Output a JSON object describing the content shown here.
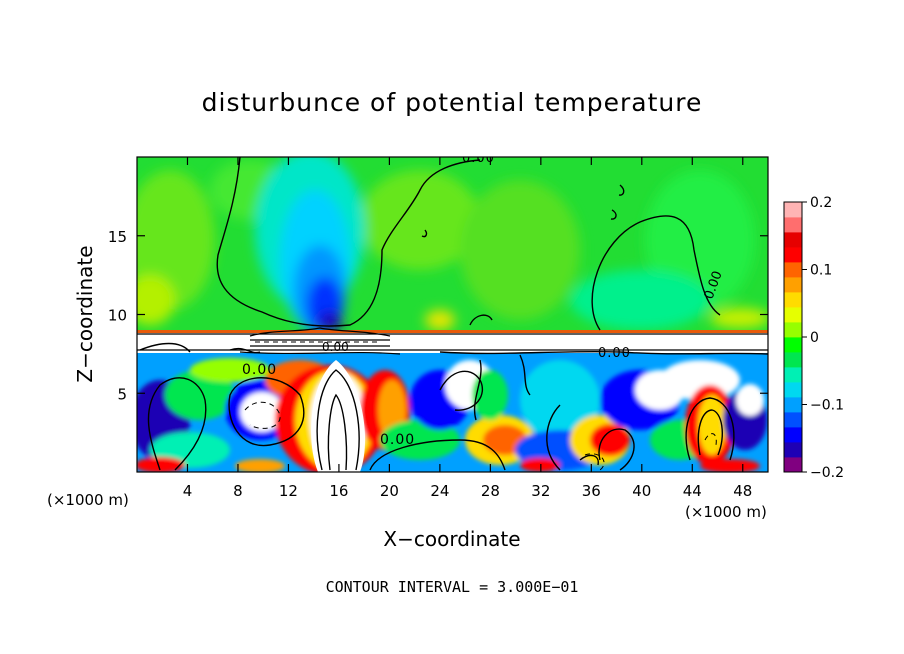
{
  "chart_data": {
    "type": "heatmap",
    "title": "disturbunce of potential temperature",
    "xlabel": "X−coordinate",
    "ylabel": "Z−coordinate",
    "x_unit_left": "(×1000 m)",
    "x_unit_right": "(×1000 m)",
    "x_ticks": [
      4,
      8,
      12,
      16,
      20,
      24,
      28,
      32,
      36,
      40,
      44,
      48
    ],
    "y_ticks": [
      5,
      10,
      15
    ],
    "xlim": [
      0,
      50
    ],
    "ylim": [
      0,
      20
    ],
    "colorbar": {
      "ticks": [
        "0.2",
        "0.1",
        "0",
        "−0.1",
        "−0.2"
      ],
      "tick_values": [
        0.2,
        0.1,
        0,
        -0.1,
        -0.2
      ],
      "range": [
        -0.2,
        0.2
      ],
      "colors": [
        "#800080",
        "#1e00b4",
        "#0000ff",
        "#0050ff",
        "#00a0ff",
        "#00d8f0",
        "#00f0b4",
        "#00e650",
        "#00ff00",
        "#96ff00",
        "#e6ff00",
        "#ffdc00",
        "#ffa000",
        "#ff6400",
        "#ff0000",
        "#e60000",
        "#ff6e6e",
        "#ffb4b4"
      ]
    },
    "contour_labels": [
      "0.00",
      "0.00",
      "0.00",
      "0.00",
      "0.00",
      "0.00"
    ],
    "footer": "CONTOUR INTERVAL = 3.000E−01"
  }
}
